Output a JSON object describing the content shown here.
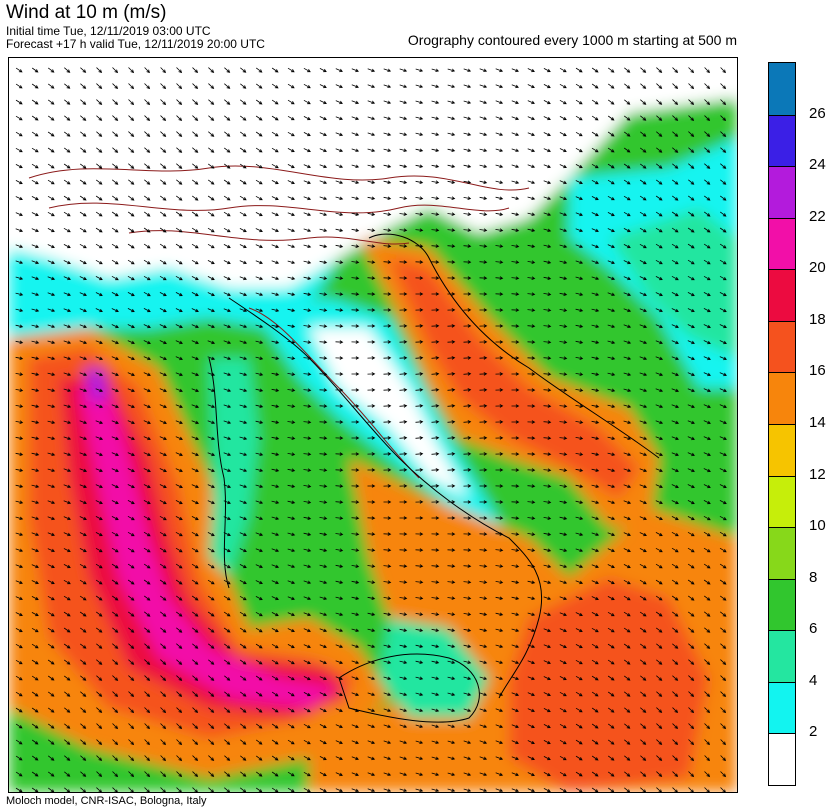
{
  "header": {
    "title": "Wind at 10 m (m/s)",
    "initial_time": "Initial time  Tue, 12/11/2019 03:00 UTC",
    "forecast_valid": "Forecast +17 h valid  Tue, 12/11/2019 20:00 UTC",
    "orography_note": "Orography contoured every 1000 m starting at 500 m"
  },
  "footer": {
    "credit": "Moloch model, CNR-ISAC, Bologna, Italy"
  },
  "legend": {
    "labels": [
      "26",
      "24",
      "22",
      "20",
      "18",
      "16",
      "14",
      "12",
      "10",
      "8",
      "6",
      "4",
      "2"
    ],
    "colors_top_to_bottom": [
      "#0b78b8",
      "#3b1fe6",
      "#b31bdc",
      "#f20fa8",
      "#ec0b40",
      "#f5521e",
      "#f7850c",
      "#f6c400",
      "#c6ee0a",
      "#87d81a",
      "#31c62e",
      "#24e6a0",
      "#12f4f0",
      "#ffffff"
    ]
  },
  "map_colors": {
    "calm": "#ffffff",
    "light": "#12f4f0",
    "moderate": "#24e6a0",
    "fresh": "#31c62e",
    "strong": "#f7850c",
    "gale": "#f5521e",
    "severe": "#ec0b40",
    "storm": "#f20fa8",
    "violent": "#b31bdc",
    "contour": "#8b1a1a",
    "coast": "#000000"
  }
}
